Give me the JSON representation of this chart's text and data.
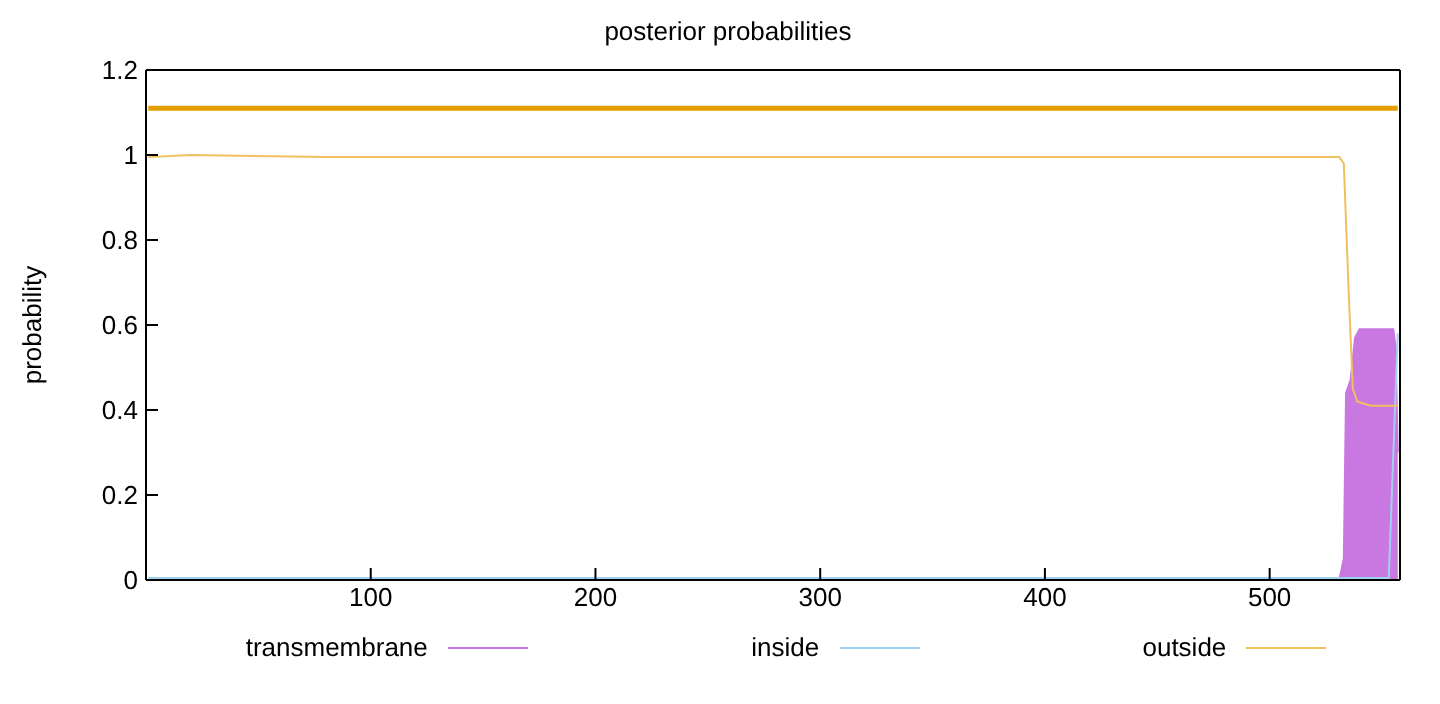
{
  "chart_data": {
    "type": "line",
    "title": "posterior probabilities",
    "ylabel": "probability",
    "xlim": [
      0,
      558
    ],
    "xticks": [
      100,
      200,
      300,
      400,
      500
    ],
    "ylim": [
      0,
      1.2
    ],
    "yticks": [
      0,
      0.2,
      0.4,
      0.6,
      0.8,
      1,
      1.2
    ],
    "legend": "bottom",
    "marker": "none",
    "series": [
      {
        "name": "transmembrane",
        "type": "area",
        "color": "#c878e0",
        "x": [
          1,
          531,
          533,
          534,
          536,
          538,
          540,
          552,
          555,
          556,
          557
        ],
        "values": [
          0,
          0,
          0.05,
          0.44,
          0.47,
          0.57,
          0.59,
          0.59,
          0.59,
          0.55,
          0.3
        ]
      },
      {
        "name": "inside",
        "color": "#a0d0f0",
        "x": [
          1,
          553,
          557
        ],
        "values": [
          0.005,
          0.005,
          0.58
        ]
      },
      {
        "name": "outside",
        "color": "#f0c060",
        "x": [
          1,
          20,
          80,
          531,
          533,
          535,
          537,
          539,
          545,
          557
        ],
        "values": [
          0.995,
          1.0,
          0.995,
          0.995,
          0.98,
          0.7,
          0.45,
          0.42,
          0.41,
          0.41
        ]
      },
      {
        "color": "#e69f00",
        "x": [
          1,
          557
        ],
        "values": [
          1.11,
          1.11
        ]
      }
    ]
  }
}
